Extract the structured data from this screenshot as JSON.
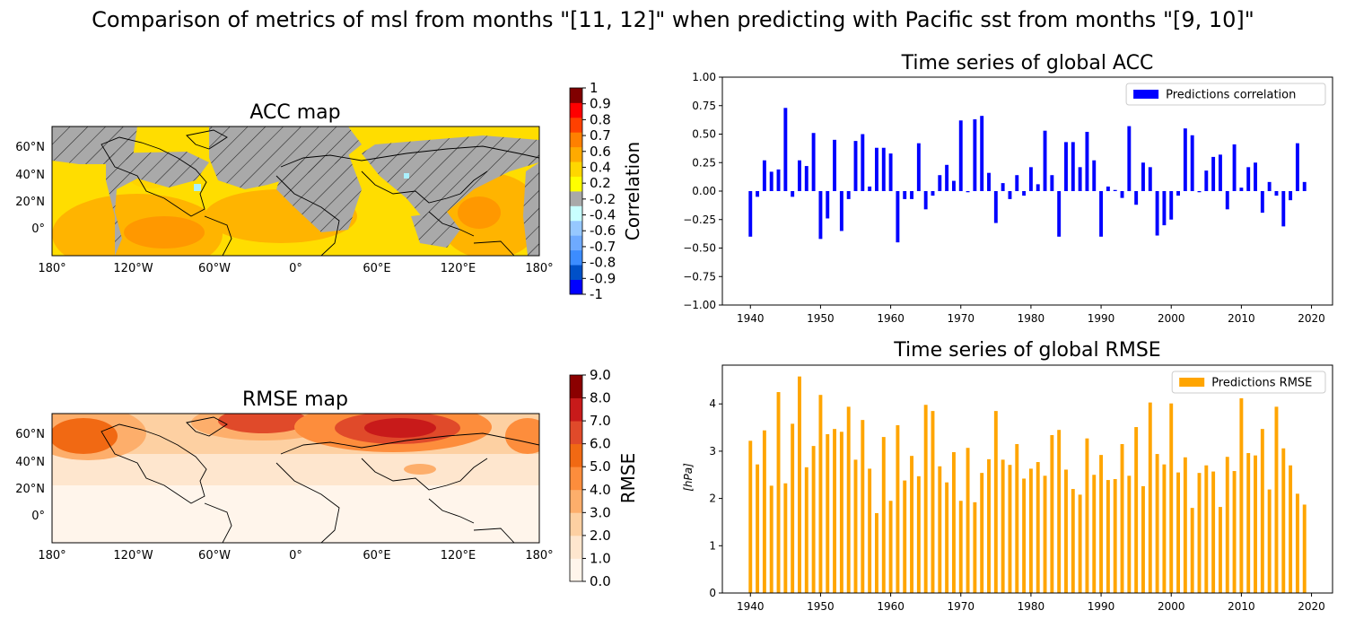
{
  "figure": {
    "title": "Comparison of metrics of msl from months \"[11, 12]\"  when predicting with Pacific sst from months \"[9, 10]\""
  },
  "acc_map": {
    "title": "ACC map",
    "lon_ticks": [
      "180°",
      "120°W",
      "60°W",
      "0°",
      "60°E",
      "120°E",
      "180°"
    ],
    "lat_ticks": [
      "60°N",
      "40°N",
      "20°N",
      "0°"
    ],
    "colorbar": {
      "label": "Correlation",
      "ticks": [
        "-1",
        "-0.9",
        "-0.8",
        "-0.7",
        "-0.6",
        "-0.4",
        "-0.2",
        "0.2",
        "0.4",
        "0.6",
        "0.7",
        "0.8",
        "0.9",
        "1"
      ],
      "colors": [
        "#0000ff",
        "#0050c8",
        "#3c8cff",
        "#6eaaff",
        "#96c8ff",
        "#c8ffff",
        "#a9a9a9",
        "#ffff00",
        "#ffd700",
        "#ffaa00",
        "#ff8000",
        "#ff4000",
        "#ff0000",
        "#800000"
      ]
    }
  },
  "rmse_map": {
    "title": "RMSE map",
    "lon_ticks": [
      "180°",
      "120°W",
      "60°W",
      "0°",
      "60°E",
      "120°E",
      "180°"
    ],
    "lat_ticks": [
      "60°N",
      "40°N",
      "20°N",
      "0°"
    ],
    "colorbar": {
      "label": "RMSE",
      "ticks": [
        "0.0",
        "1.0",
        "2.0",
        "3.0",
        "4.0",
        "5.0",
        "6.0",
        "7.0",
        "8.0",
        "9.0"
      ],
      "colors": [
        "#fff5eb",
        "#fee6ce",
        "#fdd0a2",
        "#fdae6b",
        "#fd8d3c",
        "#f16913",
        "#e04a2a",
        "#c81a1a",
        "#8b0000"
      ]
    }
  },
  "chart_data": [
    {
      "type": "bar",
      "title": "Time series of global ACC",
      "xlabel": "",
      "ylabel": "",
      "ylim": [
        -1.0,
        1.0
      ],
      "xlim": [
        1936,
        2023
      ],
      "yticks": [
        "1.00",
        "0.75",
        "0.50",
        "0.25",
        "0.00",
        "−0.25",
        "−0.50",
        "−0.75",
        "−1.00"
      ],
      "xticks": [
        "1940",
        "1950",
        "1960",
        "1970",
        "1980",
        "1990",
        "2000",
        "2010",
        "2020"
      ],
      "legend": "top-right",
      "color": "#0000ff",
      "series": [
        {
          "name": "Predictions correlation",
          "x": [
            1940,
            1941,
            1942,
            1943,
            1944,
            1945,
            1946,
            1947,
            1948,
            1949,
            1950,
            1951,
            1952,
            1953,
            1954,
            1955,
            1956,
            1957,
            1958,
            1959,
            1960,
            1961,
            1962,
            1963,
            1964,
            1965,
            1966,
            1967,
            1968,
            1969,
            1970,
            1971,
            1972,
            1973,
            1974,
            1975,
            1976,
            1977,
            1978,
            1979,
            1980,
            1981,
            1982,
            1983,
            1984,
            1985,
            1986,
            1987,
            1988,
            1989,
            1990,
            1991,
            1992,
            1993,
            1994,
            1995,
            1996,
            1997,
            1998,
            1999,
            2000,
            2001,
            2002,
            2003,
            2004,
            2005,
            2006,
            2007,
            2008,
            2009,
            2010,
            2011,
            2012,
            2013,
            2014,
            2015,
            2016,
            2017,
            2018,
            2019
          ],
          "values": [
            -0.4,
            -0.05,
            0.27,
            0.17,
            0.19,
            0.73,
            -0.05,
            0.27,
            0.22,
            0.51,
            -0.42,
            -0.24,
            0.45,
            -0.35,
            -0.07,
            0.44,
            0.5,
            0.04,
            0.38,
            0.38,
            0.33,
            -0.45,
            -0.07,
            -0.07,
            0.42,
            -0.16,
            -0.04,
            0.14,
            0.23,
            0.09,
            0.62,
            -0.01,
            0.63,
            0.66,
            0.16,
            -0.28,
            0.07,
            -0.07,
            0.14,
            -0.04,
            0.21,
            0.06,
            0.53,
            0.14,
            -0.4,
            0.43,
            0.43,
            0.21,
            0.52,
            0.27,
            -0.4,
            0.04,
            0.01,
            -0.06,
            0.57,
            -0.12,
            0.25,
            0.21,
            -0.39,
            -0.3,
            -0.25,
            -0.04,
            0.55,
            0.49,
            -0.01,
            0.18,
            0.3,
            0.32,
            -0.16,
            0.41,
            0.03,
            0.21,
            0.25,
            -0.19,
            0.08,
            -0.04,
            -0.31,
            -0.08,
            0.42,
            0.08
          ]
        }
      ]
    },
    {
      "type": "bar",
      "title": "Time series of global RMSE",
      "xlabel": "",
      "ylabel": "[hPa]",
      "ylim": [
        0,
        4.82
      ],
      "xlim": [
        1936,
        2023
      ],
      "yticks": [
        "0",
        "1",
        "2",
        "3",
        "4"
      ],
      "xticks": [
        "1940",
        "1950",
        "1960",
        "1970",
        "1980",
        "1990",
        "2000",
        "2010",
        "2020"
      ],
      "legend": "top-right",
      "color": "#ffa500",
      "series": [
        {
          "name": "Predictions RMSE",
          "x": [
            1940,
            1941,
            1942,
            1943,
            1944,
            1945,
            1946,
            1947,
            1948,
            1949,
            1950,
            1951,
            1952,
            1953,
            1954,
            1955,
            1956,
            1957,
            1958,
            1959,
            1960,
            1961,
            1962,
            1963,
            1964,
            1965,
            1966,
            1967,
            1968,
            1969,
            1970,
            1971,
            1972,
            1973,
            1974,
            1975,
            1976,
            1977,
            1978,
            1979,
            1980,
            1981,
            1982,
            1983,
            1984,
            1985,
            1986,
            1987,
            1988,
            1989,
            1990,
            1991,
            1992,
            1993,
            1994,
            1995,
            1996,
            1997,
            1998,
            1999,
            2000,
            2001,
            2002,
            2003,
            2004,
            2005,
            2006,
            2007,
            2008,
            2009,
            2010,
            2011,
            2012,
            2013,
            2014,
            2015,
            2016,
            2017,
            2018,
            2019
          ],
          "values": [
            3.22,
            2.72,
            3.44,
            2.27,
            4.25,
            2.32,
            3.58,
            4.58,
            2.66,
            3.11,
            4.19,
            3.36,
            3.47,
            3.41,
            3.94,
            2.82,
            3.66,
            2.63,
            1.69,
            3.3,
            1.95,
            3.55,
            2.38,
            2.9,
            2.47,
            3.98,
            3.85,
            2.68,
            2.34,
            2.98,
            1.95,
            3.07,
            1.92,
            2.54,
            2.83,
            3.85,
            2.82,
            2.71,
            3.15,
            2.42,
            2.63,
            2.77,
            2.48,
            3.34,
            3.45,
            2.61,
            2.2,
            2.08,
            3.27,
            2.5,
            2.92,
            2.39,
            2.41,
            3.15,
            2.48,
            3.51,
            2.26,
            4.03,
            2.94,
            2.72,
            4.01,
            2.55,
            2.87,
            1.8,
            2.54,
            2.7,
            2.57,
            1.82,
            2.88,
            2.58,
            4.12,
            2.96,
            2.91,
            3.47,
            2.19,
            3.94,
            3.06,
            2.7,
            2.1,
            1.87
          ]
        }
      ]
    }
  ]
}
